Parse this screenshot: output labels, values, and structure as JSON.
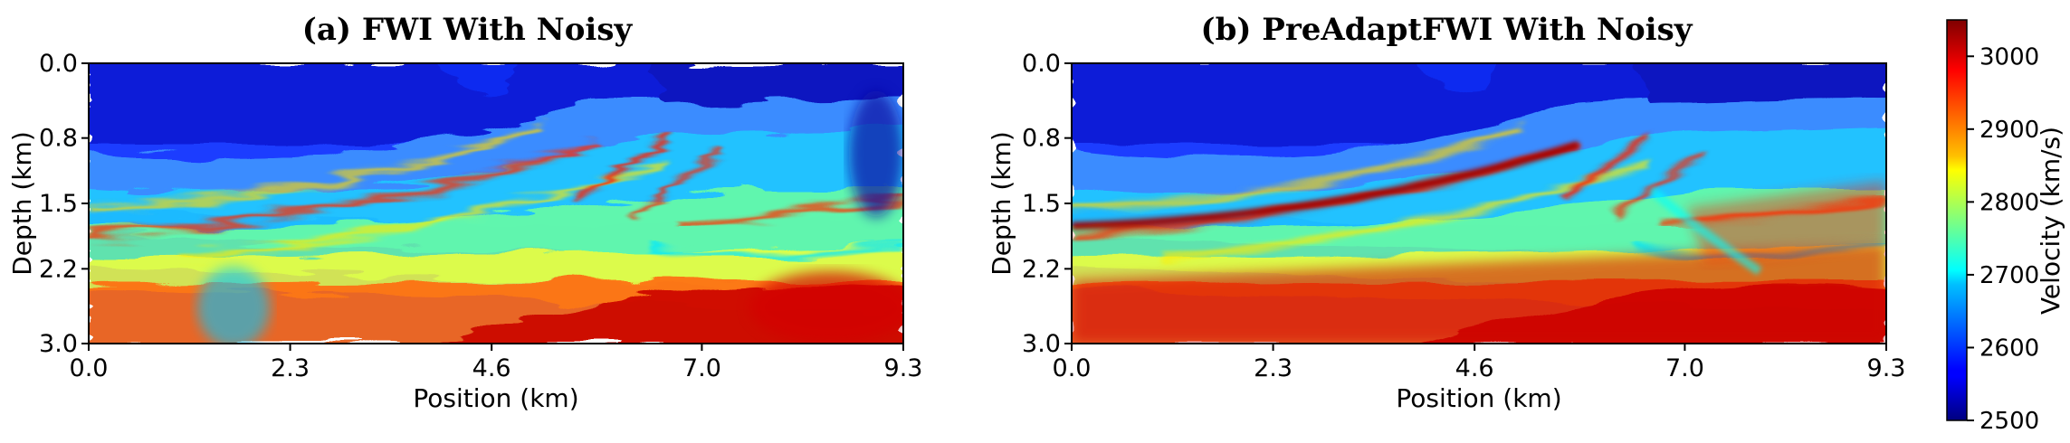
{
  "chart_data": [
    {
      "type": "heatmap",
      "title": "(a) FWI With Noisy",
      "xlabel": "Position (km)",
      "ylabel": "Depth (km)",
      "xlim": [
        0.0,
        9.3
      ],
      "ylim": [
        3.0,
        0.0
      ],
      "x_ticks": [
        "0.0",
        "2.3",
        "4.6",
        "7.0",
        "9.3"
      ],
      "y_ticks": [
        "0.0",
        "0.8",
        "1.5",
        "2.2",
        "3.0"
      ],
      "colormap": "jet",
      "value_range": [
        2500,
        3050
      ]
    },
    {
      "type": "heatmap",
      "title": "(b) PreAdaptFWI With Noisy",
      "xlabel": "Position (km)",
      "ylabel": "Depth (km)",
      "xlim": [
        0.0,
        9.3
      ],
      "ylim": [
        3.0,
        0.0
      ],
      "x_ticks": [
        "0.0",
        "2.3",
        "4.6",
        "7.0",
        "9.3"
      ],
      "y_ticks": [
        "0.0",
        "0.8",
        "1.5",
        "2.2",
        "3.0"
      ],
      "colormap": "jet",
      "value_range": [
        2500,
        3050
      ]
    }
  ],
  "colorbar": {
    "label": "Velocity (km/s)",
    "ticks": [
      "2500",
      "2600",
      "2700",
      "2800",
      "2900",
      "3000"
    ],
    "range": [
      2500,
      3050
    ],
    "colormap": "jet"
  }
}
